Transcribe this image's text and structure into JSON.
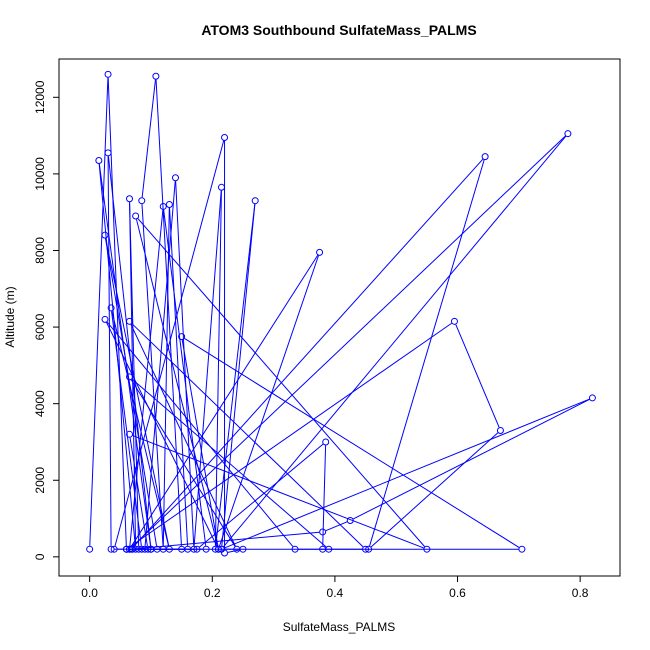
{
  "chart_data": {
    "type": "line",
    "title": "ATOM3 Southbound SulfateMass_PALMS",
    "xlabel": "SulfateMass_PALMS",
    "ylabel": "Altitude (m)",
    "xlim": [
      -0.05,
      0.865
    ],
    "ylim": [
      -500,
      13000
    ],
    "xticks": [
      0.0,
      0.2,
      0.4,
      0.6,
      0.8
    ],
    "xtick_labels": [
      "0.0",
      "0.2",
      "0.4",
      "0.6",
      "0.8"
    ],
    "yticks": [
      0,
      2000,
      4000,
      6000,
      8000,
      10000,
      12000
    ],
    "ytick_labels": [
      "0",
      "2000",
      "4000",
      "6000",
      "8000",
      "10000",
      "12000"
    ],
    "grid": false,
    "series": [
      {
        "color": "#0000ff",
        "markers": "open-circle",
        "x": [
          0.0,
          0.03,
          0.06,
          0.1,
          0.15,
          0.108,
          0.085,
          0.12,
          0.13,
          0.16,
          0.06,
          0.035,
          0.03,
          0.1,
          0.07,
          0.04,
          0.22,
          0.22,
          0.25,
          0.215,
          0.27,
          0.205,
          0.215,
          0.17,
          0.14,
          0.09,
          0.08,
          0.065,
          0.075,
          0.015,
          0.1,
          0.11,
          0.025,
          0.13,
          0.035,
          0.085,
          0.19,
          0.12,
          0.065,
          0.375,
          0.21,
          0.075,
          0.55,
          0.065,
          0.095,
          0.175,
          0.385,
          0.38,
          0.39,
          0.065,
          0.24,
          0.065,
          0.45,
          0.335,
          0.025,
          0.21,
          0.15,
          0.705,
          0.06,
          0.595,
          0.67,
          0.455,
          0.645,
          0.068,
          0.38,
          0.425,
          0.82,
          0.215,
          0.78,
          0.065
        ],
        "y": [
          200,
          12600,
          200,
          200,
          200,
          12550,
          9300,
          200,
          9200,
          200,
          200,
          200,
          10550,
          200,
          200,
          200,
          10950,
          100,
          200,
          200,
          9300,
          200,
          9650,
          200,
          9900,
          200,
          200,
          9350,
          200,
          10350,
          200,
          200,
          8400,
          200,
          6500,
          200,
          200,
          9150,
          200,
          7950,
          200,
          8900,
          200,
          3200,
          200,
          200,
          3000,
          200,
          200,
          4700,
          200,
          6150,
          200,
          200,
          6200,
          200,
          5750,
          200,
          200,
          6150,
          3300,
          200,
          10450,
          200,
          650,
          950,
          4150,
          200,
          11050,
          200
        ]
      }
    ]
  }
}
